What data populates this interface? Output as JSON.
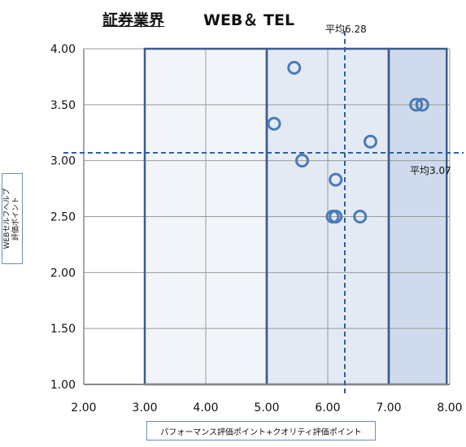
{
  "title": "証券業界",
  "subtitle": "WEB＆ TEL",
  "chart_data": {
    "type": "scatter",
    "xlabel": "パフォーマンス評価ポイント+クオリティ評価ポイント",
    "ylabel_lines": [
      "WEBセルフヘルプ",
      "評価ポイント"
    ],
    "xlim": [
      2.0,
      8.0
    ],
    "ylim": [
      1.0,
      4.0
    ],
    "xticks": [
      "2.00",
      "3.00",
      "4.00",
      "5.00",
      "6.00",
      "7.00",
      "8.00"
    ],
    "yticks": [
      "1.00",
      "1.50",
      "2.00",
      "2.50",
      "3.00",
      "3.50",
      "4.00"
    ],
    "grid": true,
    "points": [
      {
        "x": 5.45,
        "y": 3.83
      },
      {
        "x": 5.12,
        "y": 3.33
      },
      {
        "x": 5.58,
        "y": 3.0
      },
      {
        "x": 6.13,
        "y": 2.83
      },
      {
        "x": 6.08,
        "y": 2.5
      },
      {
        "x": 6.13,
        "y": 2.5
      },
      {
        "x": 6.53,
        "y": 2.5
      },
      {
        "x": 6.7,
        "y": 3.17
      },
      {
        "x": 7.45,
        "y": 3.5
      },
      {
        "x": 7.55,
        "y": 3.5
      }
    ],
    "mean_x": {
      "value": 6.28,
      "label": "平均6.28"
    },
    "mean_y": {
      "value": 3.07,
      "label": "平均3.07"
    },
    "regions": [
      {
        "from": 3.0,
        "to": 5.0,
        "fill": "#f1f4f9"
      },
      {
        "from": 5.0,
        "to": 7.0,
        "fill": "#e3eaf4"
      },
      {
        "from": 7.0,
        "to": 7.95,
        "fill": "#cfdbec"
      }
    ],
    "marker_color": "#4a7ab8",
    "mean_line_color": "#2f5fa8"
  }
}
